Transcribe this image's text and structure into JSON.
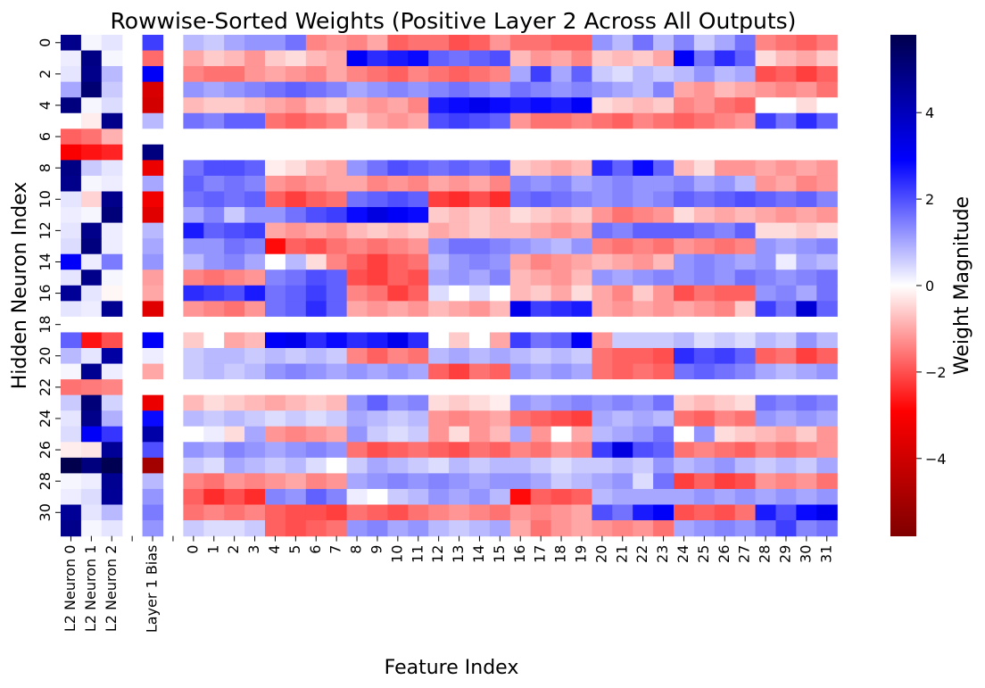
{
  "chart_data": {
    "type": "heatmap",
    "title": "Rowwise-Sorted Weights (Positive Layer 2 Across All Outputs)",
    "xlabel": "Feature Index",
    "ylabel": "Hidden Neuron Index",
    "colorbar_label": "Weight Magnitude",
    "colormap": "seismic",
    "color_range": [
      -5.8,
      5.8
    ],
    "colorbar_ticks": [
      4,
      2,
      0,
      -2,
      -4
    ],
    "colorbar_tick_labels": [
      "4",
      "2",
      "0",
      "−2",
      "−4"
    ],
    "row_tick_labels": [
      "0",
      "2",
      "4",
      "6",
      "8",
      "10",
      "12",
      "14",
      "16",
      "18",
      "20",
      "22",
      "24",
      "26",
      "28",
      "30"
    ],
    "rows": [
      "0",
      "1",
      "2",
      "3",
      "4",
      "5",
      "6",
      "7",
      "8",
      "9",
      "10",
      "11",
      "12",
      "13",
      "14",
      "15",
      "16",
      "17",
      "18",
      "19",
      "20",
      "21",
      "22",
      "23",
      "24",
      "25",
      "26",
      "27",
      "28",
      "29",
      "30",
      "31"
    ],
    "columns": [
      "L2 Neuron 0",
      "L2 Neuron 1",
      "L2 Neuron 2",
      "",
      "Layer 1 Bias",
      "",
      "0",
      "1",
      "2",
      "3",
      "4",
      "5",
      "6",
      "7",
      "8",
      "9",
      "10",
      "11",
      "12",
      "13",
      "14",
      "15",
      "16",
      "17",
      "18",
      "19",
      "20",
      "21",
      "22",
      "23",
      "24",
      "25",
      "26",
      "27",
      "28",
      "29",
      "30",
      "31"
    ],
    "l2_weights": [
      [
        4.8,
        0.1,
        0.3
      ],
      [
        0.2,
        4.9,
        0.1
      ],
      [
        0.3,
        4.8,
        0.8
      ],
      [
        1.0,
        5.2,
        0.6
      ],
      [
        5.0,
        0.1,
        0.4
      ],
      [
        0.0,
        -0.2,
        4.8
      ],
      [
        -1.8,
        -1.6,
        -0.9
      ],
      [
        -3.0,
        -2.7,
        -2.5
      ],
      [
        4.9,
        0.6,
        0.3
      ],
      [
        4.8,
        0.1,
        0.2
      ],
      [
        0.3,
        -0.5,
        4.8
      ],
      [
        0.2,
        0.1,
        5.1
      ],
      [
        0.3,
        4.8,
        0.2
      ],
      [
        0.4,
        5.0,
        0.2
      ],
      [
        3.0,
        0.2,
        1.5
      ],
      [
        0.3,
        4.8,
        0.1
      ],
      [
        4.6,
        0.3,
        -0.1
      ],
      [
        0.3,
        0.2,
        4.7
      ],
      [
        0.0,
        0.0,
        0.0
      ],
      [
        1.8,
        -2.7,
        -2.0
      ],
      [
        0.8,
        0.3,
        4.4
      ],
      [
        0.1,
        4.7,
        0.2
      ],
      [
        -1.6,
        -1.5,
        -1.4
      ],
      [
        0.6,
        5.1,
        0.5
      ],
      [
        0.3,
        4.8,
        0.9
      ],
      [
        0.4,
        3.0,
        2.3
      ],
      [
        -0.2,
        -0.3,
        4.6
      ],
      [
        5.8,
        5.0,
        5.7
      ],
      [
        0.1,
        0.2,
        4.7
      ],
      [
        0.2,
        0.4,
        4.6
      ],
      [
        4.6,
        0.3,
        0.8
      ],
      [
        4.8,
        0.1,
        0.3
      ]
    ],
    "layer1_bias": [
      2.2,
      -1.7,
      3.0,
      -3.8,
      -3.9,
      0.8,
      0.0,
      5.0,
      -3.3,
      1.0,
      -3.2,
      -3.6,
      0.8,
      1.0,
      1.2,
      -1.1,
      -1.0,
      -3.6,
      0.0,
      3.0,
      0.2,
      -1.0,
      0.0,
      -3.3,
      2.8,
      4.3,
      2.0,
      -5.0,
      0.8,
      1.2,
      1.5,
      1.2
    ],
    "layer1_weights": [
      [
        0.8,
        0.6,
        1.0,
        1.2,
        1.2,
        1.6,
        -1.4,
        -1.2,
        -1.4,
        -1.0,
        -1.8,
        -1.6,
        -1.6,
        -2.0,
        -1.8,
        -1.2,
        -1.6,
        -1.6,
        -1.8,
        -1.8,
        1.2,
        0.8,
        1.6,
        0.8,
        1.4,
        0.6,
        1.0,
        1.6,
        -1.4,
        -1.6,
        -1.8,
        -1.5
      ],
      [
        -1.0,
        -0.6,
        -0.8,
        -1.2,
        -0.6,
        -0.4,
        -0.8,
        -1.0,
        3.0,
        2.4,
        2.6,
        2.8,
        1.8,
        1.6,
        1.8,
        2.0,
        -0.8,
        -1.2,
        -1.0,
        -1.4,
        -0.6,
        -0.8,
        -0.6,
        -1.0,
        3.0,
        1.6,
        2.4,
        1.8,
        -0.4,
        -0.8,
        -1.0,
        -0.6
      ],
      [
        -1.4,
        -1.6,
        -1.6,
        -1.2,
        -1.0,
        -1.2,
        -1.4,
        -1.0,
        -1.4,
        -1.6,
        -1.8,
        -1.4,
        -1.6,
        -1.8,
        -1.6,
        -1.4,
        1.0,
        2.2,
        1.0,
        1.8,
        0.6,
        0.4,
        0.8,
        0.6,
        0.8,
        1.2,
        0.8,
        1.0,
        -2.0,
        -1.8,
        -2.2,
        -1.8
      ],
      [
        1.2,
        1.0,
        1.2,
        1.4,
        1.6,
        1.8,
        1.6,
        1.4,
        1.0,
        1.2,
        1.4,
        1.2,
        1.4,
        1.6,
        1.4,
        1.2,
        1.6,
        1.4,
        1.2,
        1.4,
        1.2,
        1.0,
        0.8,
        1.4,
        -1.0,
        -1.2,
        -0.8,
        -1.0,
        -1.2,
        -1.4,
        -1.2,
        -1.6
      ],
      [
        -0.8,
        -0.6,
        -0.6,
        -0.8,
        -1.0,
        -1.2,
        -0.8,
        -0.6,
        -1.0,
        -1.2,
        -1.0,
        -1.4,
        2.6,
        2.8,
        3.2,
        2.8,
        2.6,
        2.8,
        2.6,
        3.0,
        -0.4,
        -0.6,
        -0.8,
        -0.6,
        -1.4,
        -1.2,
        -1.6,
        -1.8,
        0.0,
        0.0,
        -0.4,
        0.0
      ],
      [
        1.6,
        1.4,
        1.8,
        1.8,
        -1.6,
        -1.8,
        -1.6,
        -1.4,
        -0.6,
        -1.0,
        -1.2,
        -1.0,
        2.0,
        2.2,
        2.0,
        1.8,
        -1.2,
        -1.6,
        -1.6,
        -1.4,
        -1.6,
        -1.8,
        -1.4,
        -1.6,
        -1.8,
        -1.6,
        -1.4,
        -1.2,
        2.2,
        1.6,
        2.4,
        1.8
      ],
      [
        0.0,
        0.0,
        0.0,
        0.0,
        0.0,
        0.0,
        0.0,
        0.0,
        0.0,
        0.0,
        0.0,
        0.0,
        0.0,
        0.0,
        0.0,
        0.0,
        0.0,
        0.0,
        0.0,
        0.0,
        0.0,
        0.0,
        0.0,
        0.0,
        0.0,
        0.0,
        0.0,
        0.0,
        0.0,
        0.0,
        0.0,
        0.0
      ],
      [
        0.0,
        0.0,
        0.0,
        0.0,
        0.0,
        0.0,
        0.0,
        0.0,
        0.0,
        0.0,
        0.0,
        0.0,
        0.0,
        0.0,
        0.0,
        0.0,
        0.0,
        0.0,
        0.0,
        0.0,
        0.0,
        0.0,
        0.0,
        0.0,
        0.0,
        0.0,
        0.0,
        0.0,
        0.0,
        0.0,
        0.0,
        0.0
      ],
      [
        1.6,
        2.0,
        2.0,
        1.8,
        -0.2,
        -0.4,
        -0.8,
        -1.0,
        1.2,
        1.6,
        2.0,
        1.8,
        1.6,
        1.8,
        1.6,
        1.8,
        -0.6,
        -0.8,
        -1.0,
        -0.8,
        2.4,
        1.8,
        2.8,
        1.8,
        -0.8,
        -0.4,
        -1.2,
        -1.2,
        -1.0,
        -1.2,
        -1.0,
        -1.2
      ],
      [
        1.8,
        1.4,
        1.6,
        1.4,
        -1.2,
        -1.4,
        -1.2,
        -1.0,
        -1.0,
        -1.4,
        -1.2,
        -1.4,
        -1.0,
        -1.2,
        -1.0,
        -1.4,
        1.4,
        1.2,
        1.4,
        1.0,
        1.2,
        1.4,
        1.2,
        1.2,
        1.4,
        1.0,
        1.2,
        0.8,
        -1.2,
        -1.0,
        -1.4,
        -1.2
      ],
      [
        1.6,
        1.8,
        1.6,
        1.8,
        -1.8,
        -2.2,
        -1.8,
        -1.6,
        1.6,
        1.8,
        2.0,
        1.8,
        -2.2,
        -2.4,
        -2.0,
        -2.4,
        1.6,
        1.8,
        1.6,
        1.4,
        1.2,
        1.4,
        1.2,
        1.4,
        1.8,
        1.6,
        1.8,
        2.0,
        1.8,
        1.6,
        1.8,
        1.4
      ],
      [
        1.0,
        1.4,
        0.6,
        1.2,
        1.2,
        1.6,
        2.0,
        2.2,
        2.8,
        3.4,
        3.0,
        2.8,
        -0.6,
        -0.8,
        -0.6,
        -0.8,
        -0.4,
        -0.6,
        -0.8,
        -0.6,
        -1.2,
        -1.6,
        -1.4,
        -1.2,
        -0.4,
        -0.8,
        -1.0,
        -0.8,
        -1.0,
        -1.2,
        -1.0,
        -1.2
      ],
      [
        2.6,
        1.8,
        2.0,
        2.2,
        -1.0,
        -1.2,
        -1.0,
        -1.2,
        -0.8,
        -0.6,
        -0.8,
        -0.6,
        -1.0,
        -0.8,
        -0.6,
        -0.8,
        -0.8,
        -1.0,
        -1.2,
        -1.0,
        1.6,
        1.4,
        1.8,
        1.8,
        1.8,
        1.6,
        1.4,
        1.8,
        -0.4,
        -0.4,
        -0.6,
        -0.4
      ],
      [
        1.2,
        1.2,
        1.6,
        1.4,
        -2.8,
        -1.8,
        -2.0,
        -1.6,
        -1.4,
        -1.6,
        -1.4,
        -1.2,
        1.2,
        1.6,
        1.6,
        1.4,
        1.2,
        1.0,
        0.8,
        1.2,
        -1.4,
        -1.6,
        -1.4,
        -1.6,
        -1.2,
        -1.4,
        -1.6,
        -1.4,
        1.2,
        1.0,
        1.2,
        1.4
      ],
      [
        0.8,
        1.2,
        1.4,
        1.0,
        0.0,
        0.8,
        -0.4,
        -1.4,
        -1.8,
        -2.2,
        -1.8,
        -1.6,
        0.8,
        1.2,
        1.4,
        1.2,
        -1.0,
        -1.4,
        -1.2,
        -1.0,
        -0.8,
        -1.0,
        -1.2,
        -0.8,
        1.2,
        1.4,
        1.2,
        1.0,
        1.2,
        0.2,
        1.0,
        0.8
      ],
      [
        -1.4,
        -1.6,
        -1.4,
        -1.2,
        1.4,
        1.6,
        2.0,
        1.8,
        -2.0,
        -2.2,
        -1.8,
        -2.0,
        1.0,
        1.2,
        1.0,
        1.4,
        -0.8,
        -1.0,
        -1.2,
        -0.8,
        1.2,
        1.0,
        1.2,
        1.4,
        1.2,
        1.4,
        1.2,
        1.6,
        1.4,
        1.2,
        1.4,
        1.6
      ],
      [
        2.4,
        2.2,
        2.0,
        2.6,
        1.6,
        1.8,
        2.2,
        1.8,
        -1.4,
        -1.6,
        -2.2,
        -1.8,
        0.4,
        0.0,
        0.4,
        0.0,
        -0.8,
        -0.6,
        -1.0,
        -0.4,
        -1.0,
        -1.4,
        -0.6,
        -1.2,
        -2.0,
        -1.6,
        -1.8,
        -1.8,
        1.2,
        1.4,
        1.0,
        1.6
      ],
      [
        -1.2,
        -1.4,
        -1.6,
        -1.2,
        1.6,
        1.8,
        2.4,
        1.8,
        -1.0,
        -1.2,
        -1.0,
        -1.2,
        -0.8,
        -1.0,
        -1.2,
        -0.8,
        3.2,
        2.2,
        2.4,
        2.6,
        -1.0,
        -1.2,
        -1.0,
        -1.2,
        -1.0,
        -1.2,
        -1.4,
        -0.6,
        2.2,
        1.6,
        3.6,
        1.8
      ],
      [
        0.0,
        0.0,
        0.0,
        0.0,
        0.0,
        0.0,
        0.0,
        0.0,
        0.0,
        0.0,
        0.0,
        0.0,
        0.0,
        0.0,
        0.0,
        0.0,
        0.0,
        0.0,
        0.0,
        0.0,
        0.0,
        0.0,
        0.0,
        0.0,
        0.0,
        0.0,
        0.0,
        0.0,
        0.0,
        0.0,
        0.0,
        0.0
      ],
      [
        -0.6,
        0.0,
        -1.0,
        -0.8,
        3.0,
        3.2,
        2.4,
        2.8,
        2.4,
        2.6,
        3.2,
        2.4,
        0.0,
        -0.6,
        0.0,
        -1.0,
        2.2,
        1.6,
        1.8,
        3.0,
        -1.2,
        0.6,
        0.6,
        0.6,
        0.8,
        0.4,
        0.6,
        0.4,
        0.8,
        0.6,
        1.2,
        0.8
      ],
      [
        0.6,
        0.8,
        0.8,
        0.6,
        0.8,
        0.6,
        0.8,
        0.6,
        -1.4,
        -1.8,
        -1.4,
        -1.6,
        0.8,
        1.0,
        0.8,
        1.0,
        0.8,
        0.6,
        0.8,
        0.6,
        -1.6,
        -1.8,
        -1.8,
        -2.0,
        2.4,
        2.0,
        2.2,
        1.8,
        -1.8,
        -1.6,
        -2.2,
        -1.8
      ],
      [
        0.6,
        0.8,
        0.6,
        0.8,
        1.2,
        1.4,
        1.2,
        1.0,
        1.2,
        1.0,
        1.2,
        1.0,
        -1.8,
        -2.2,
        -1.6,
        -1.8,
        1.2,
        1.0,
        1.2,
        1.0,
        -1.6,
        -1.8,
        -1.6,
        -1.8,
        1.6,
        1.8,
        1.6,
        1.4,
        1.0,
        0.8,
        1.0,
        1.2
      ],
      [
        0.0,
        0.0,
        0.0,
        0.0,
        0.0,
        0.0,
        0.0,
        0.0,
        0.0,
        0.0,
        0.0,
        0.0,
        0.0,
        0.0,
        0.0,
        0.0,
        0.0,
        0.0,
        0.0,
        0.0,
        0.0,
        0.0,
        0.0,
        0.0,
        0.0,
        0.0,
        0.0,
        0.0,
        0.0,
        0.0,
        0.0,
        0.0
      ],
      [
        -0.8,
        -0.4,
        -0.6,
        -0.8,
        -1.0,
        -0.8,
        -0.6,
        -0.8,
        1.2,
        1.8,
        1.2,
        1.4,
        -0.4,
        -0.6,
        -0.4,
        -0.2,
        1.2,
        1.0,
        1.2,
        1.4,
        1.2,
        1.4,
        1.2,
        1.6,
        -0.6,
        -0.8,
        -0.6,
        -0.4,
        1.6,
        1.4,
        1.6,
        1.4
      ],
      [
        0.8,
        0.6,
        0.8,
        0.6,
        0.4,
        0.6,
        0.4,
        0.6,
        1.0,
        0.8,
        0.6,
        0.8,
        -1.2,
        -1.4,
        -1.2,
        -1.0,
        -1.6,
        -1.8,
        -2.0,
        -2.2,
        1.0,
        0.8,
        1.0,
        0.8,
        -1.6,
        -1.8,
        -1.4,
        -1.6,
        1.2,
        1.0,
        1.2,
        1.0
      ],
      [
        0.0,
        0.2,
        -0.4,
        1.0,
        -1.2,
        -1.4,
        -1.2,
        -1.0,
        1.2,
        0.6,
        0.4,
        0.6,
        -1.2,
        -0.4,
        -1.2,
        -0.8,
        1.0,
        -1.2,
        0.0,
        -1.0,
        0.8,
        1.0,
        1.2,
        1.6,
        0.0,
        1.2,
        -0.4,
        -0.6,
        -0.8,
        -1.0,
        -0.6,
        -1.2
      ],
      [
        1.2,
        1.0,
        1.4,
        1.2,
        1.0,
        1.2,
        1.4,
        1.2,
        -1.6,
        -2.0,
        -1.8,
        -1.6,
        -1.8,
        -2.0,
        -1.6,
        -1.8,
        -1.4,
        -1.6,
        -1.2,
        -1.4,
        2.2,
        3.4,
        2.0,
        1.8,
        -1.6,
        -1.4,
        -1.6,
        -1.8,
        -1.4,
        -1.6,
        -1.4,
        -1.2
      ],
      [
        0.6,
        0.4,
        1.0,
        0.8,
        0.6,
        0.8,
        0.4,
        0.0,
        0.6,
        1.0,
        0.8,
        0.6,
        0.4,
        0.8,
        0.6,
        0.8,
        0.8,
        0.6,
        0.4,
        0.6,
        0.6,
        0.8,
        0.6,
        1.2,
        0.8,
        1.0,
        1.2,
        0.8,
        0.6,
        0.8,
        0.6,
        1.0
      ],
      [
        -1.4,
        -1.6,
        -1.2,
        -1.4,
        -1.2,
        -1.0,
        -1.4,
        -1.2,
        1.0,
        1.2,
        1.4,
        1.2,
        1.4,
        1.2,
        1.0,
        1.2,
        1.2,
        1.0,
        0.6,
        0.8,
        1.0,
        1.2,
        0.4,
        1.6,
        -2.2,
        -1.8,
        -2.2,
        -2.0,
        -1.2,
        -1.4,
        -1.2,
        -1.6
      ],
      [
        -1.8,
        -2.4,
        -2.0,
        -2.4,
        1.4,
        1.2,
        1.8,
        1.4,
        0.2,
        0.0,
        0.6,
        0.8,
        1.2,
        1.0,
        1.2,
        0.8,
        -2.8,
        -1.8,
        -2.0,
        -1.8,
        0.8,
        1.0,
        1.0,
        1.0,
        1.0,
        1.2,
        1.0,
        1.2,
        1.0,
        1.2,
        1.0,
        1.2
      ],
      [
        -1.6,
        -1.4,
        -1.6,
        -1.4,
        -1.8,
        -2.0,
        -2.0,
        -2.2,
        -1.6,
        -1.8,
        -2.0,
        -1.6,
        -1.4,
        -1.2,
        -1.4,
        -1.6,
        -1.2,
        -1.4,
        -1.2,
        -1.0,
        2.0,
        1.6,
        2.6,
        3.0,
        -2.0,
        -1.8,
        -2.0,
        -1.6,
        2.6,
        2.0,
        2.8,
        3.2
      ],
      [
        0.6,
        0.4,
        0.4,
        0.6,
        -1.8,
        -2.0,
        -1.8,
        -1.6,
        1.2,
        1.4,
        1.0,
        1.2,
        0.8,
        0.6,
        0.8,
        1.0,
        -1.0,
        -1.6,
        -1.2,
        -1.0,
        -1.2,
        -1.4,
        -1.2,
        -1.6,
        1.0,
        1.2,
        1.4,
        1.2,
        1.6,
        2.2,
        1.4,
        1.6
      ]
    ]
  }
}
